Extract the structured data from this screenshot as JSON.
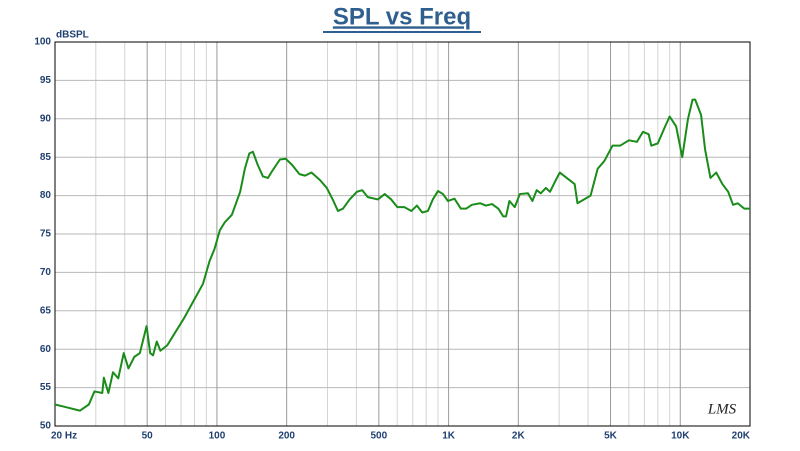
{
  "chart_data": {
    "type": "line",
    "title": "SPL vs Freq",
    "y_label": "dBSPL",
    "watermark": "LMS",
    "xscale": "log",
    "grid": true,
    "xlim": [
      20,
      20000
    ],
    "ylim": [
      50,
      100
    ],
    "xticks": [
      {
        "value": 20,
        "label": "20 Hz"
      },
      50,
      100,
      200,
      500,
      {
        "value": 1000,
        "label": "1K"
      },
      {
        "value": 2000,
        "label": "2K"
      },
      {
        "value": 5000,
        "label": "5K"
      },
      {
        "value": 10000,
        "label": "10K"
      },
      {
        "value": 20000,
        "label": "20K"
      }
    ],
    "xminorticks": [
      30,
      40,
      60,
      70,
      80,
      90,
      300,
      400,
      600,
      700,
      800,
      900,
      3000,
      4000,
      6000,
      7000,
      8000,
      9000
    ],
    "yticks": [
      50,
      55,
      60,
      65,
      70,
      75,
      80,
      85,
      90,
      95,
      100
    ],
    "x": [
      20,
      22,
      25.6,
      28,
      29.6,
      32,
      32.5,
      34,
      35.6,
      37.5,
      39.6,
      41.5,
      44,
      46.5,
      49.7,
      51.5,
      53,
      55,
      57,
      61,
      65.5,
      72,
      80,
      87,
      93,
      97.5,
      103,
      108,
      116,
      126,
      132,
      138,
      143,
      150,
      158,
      166,
      174,
      187,
      198,
      211,
      227,
      240,
      256,
      279,
      298,
      316,
      333,
      350,
      374,
      402,
      424,
      448,
      495,
      530,
      565,
      601,
      644,
      691,
      730,
      770,
      814,
      855,
      900,
      945,
      994,
      1060,
      1130,
      1190,
      1260,
      1370,
      1450,
      1540,
      1640,
      1720,
      1770,
      1830,
      1930,
      2030,
      2200,
      2300,
      2400,
      2500,
      2630,
      2740,
      2900,
      3020,
      3500,
      3600,
      4100,
      4400,
      4700,
      5100,
      5500,
      6000,
      6500,
      6900,
      7300,
      7500,
      8000,
      8600,
      9000,
      9600,
      10200,
      10800,
      11300,
      11600,
      12300,
      12800,
      13500,
      14300,
      15200,
      16100,
      16900,
      17700,
      18900,
      20000
    ],
    "series": [
      {
        "name": "SPL",
        "color": "#1a8c1a",
        "values": [
          52.8,
          52.5,
          52.0,
          52.8,
          54.5,
          54.3,
          56.3,
          54.3,
          57.0,
          56.2,
          59.5,
          57.5,
          59.0,
          59.5,
          63.0,
          59.5,
          59.2,
          61.0,
          59.8,
          60.5,
          62.0,
          64.0,
          66.5,
          68.5,
          71.5,
          73.0,
          75.5,
          76.5,
          77.5,
          80.5,
          83.5,
          85.5,
          85.7,
          84.0,
          82.5,
          82.3,
          83.3,
          84.7,
          84.8,
          84.0,
          82.8,
          82.6,
          83.0,
          82.0,
          81.0,
          79.5,
          78.0,
          78.3,
          79.5,
          80.5,
          80.7,
          79.8,
          79.5,
          80.2,
          79.5,
          78.5,
          78.5,
          78.0,
          78.7,
          77.8,
          78.0,
          79.5,
          80.6,
          80.2,
          79.3,
          79.6,
          78.3,
          78.3,
          78.8,
          79.0,
          78.7,
          78.9,
          78.3,
          77.3,
          77.3,
          79.3,
          78.5,
          80.2,
          80.3,
          79.3,
          80.7,
          80.3,
          81.0,
          80.5,
          82.0,
          83.0,
          81.5,
          79.0,
          80.0,
          83.5,
          84.5,
          86.5,
          86.5,
          87.2,
          87.0,
          88.3,
          88.0,
          86.5,
          86.8,
          89.0,
          90.3,
          89.0,
          85.0,
          90.0,
          92.5,
          92.5,
          90.5,
          86.0,
          82.3,
          83.0,
          81.5,
          80.5,
          78.8,
          79.0,
          78.3,
          78.3
        ]
      }
    ]
  }
}
